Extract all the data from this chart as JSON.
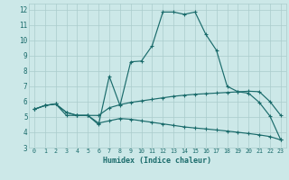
{
  "xlabel": "Humidex (Indice chaleur)",
  "xlim": [
    -0.5,
    23.5
  ],
  "ylim": [
    3,
    12.4
  ],
  "xticks": [
    0,
    1,
    2,
    3,
    4,
    5,
    6,
    7,
    8,
    9,
    10,
    11,
    12,
    13,
    14,
    15,
    16,
    17,
    18,
    19,
    20,
    21,
    22,
    23
  ],
  "yticks": [
    3,
    4,
    5,
    6,
    7,
    8,
    9,
    10,
    11,
    12
  ],
  "background_color": "#cce8e8",
  "grid_color": "#aacccc",
  "line_color": "#1a6b6b",
  "line1_x": [
    0,
    1,
    2,
    3,
    4,
    5,
    6,
    7,
    8,
    9,
    10,
    11,
    12,
    13,
    14,
    15,
    16,
    17,
    18,
    19,
    20,
    21,
    22,
    23
  ],
  "line1_y": [
    5.5,
    5.75,
    5.85,
    5.1,
    5.1,
    5.1,
    4.5,
    7.65,
    5.75,
    8.6,
    8.65,
    9.65,
    11.85,
    11.85,
    11.7,
    11.85,
    10.4,
    9.35,
    7.0,
    6.65,
    6.55,
    5.95,
    5.05,
    3.5
  ],
  "line2_x": [
    0,
    1,
    2,
    3,
    4,
    5,
    6,
    7,
    8,
    9,
    10,
    11,
    12,
    13,
    14,
    15,
    16,
    17,
    18,
    19,
    20,
    21,
    22,
    23
  ],
  "line2_y": [
    5.5,
    5.75,
    5.85,
    5.3,
    5.1,
    5.1,
    5.1,
    5.6,
    5.8,
    5.95,
    6.05,
    6.15,
    6.25,
    6.35,
    6.42,
    6.48,
    6.52,
    6.56,
    6.6,
    6.64,
    6.68,
    6.65,
    6.0,
    5.1
  ],
  "line3_x": [
    0,
    1,
    2,
    3,
    4,
    5,
    6,
    7,
    8,
    9,
    10,
    11,
    12,
    13,
    14,
    15,
    16,
    17,
    18,
    19,
    20,
    21,
    22,
    23
  ],
  "line3_y": [
    5.5,
    5.75,
    5.85,
    5.3,
    5.1,
    5.1,
    4.6,
    4.75,
    4.9,
    4.85,
    4.75,
    4.65,
    4.55,
    4.45,
    4.35,
    4.28,
    4.22,
    4.15,
    4.08,
    4.0,
    3.92,
    3.83,
    3.72,
    3.5
  ]
}
